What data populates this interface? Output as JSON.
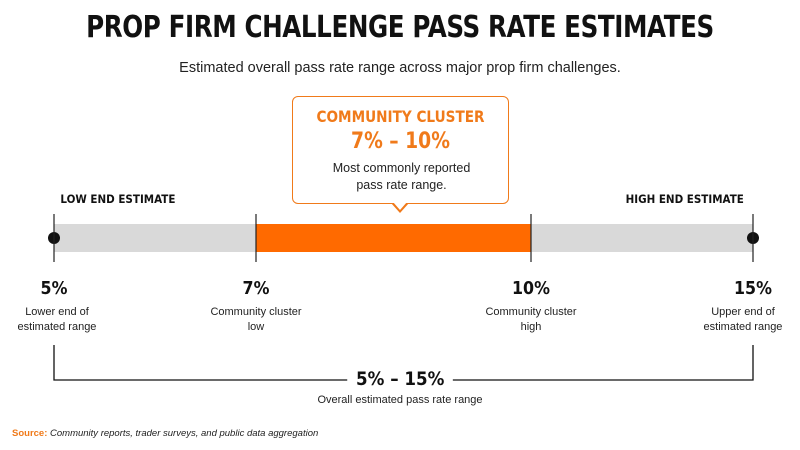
{
  "header": {
    "title": "PROP FIRM CHALLENGE PASS RATE ESTIMATES",
    "subtitle": "Estimated overall pass rate range across major prop firm challenges."
  },
  "callout": {
    "title": "COMMUNITY CLUSTER",
    "range": "7% – 10%",
    "description": "Most commonly reported pass rate range."
  },
  "ends": {
    "low_label": "LOW END ESTIMATE",
    "high_label": "HIGH END ESTIMATE"
  },
  "ticks": [
    {
      "value_label": "5%",
      "description": "Lower end of estimated range"
    },
    {
      "value_label": "7%",
      "description": "Community cluster low"
    },
    {
      "value_label": "10%",
      "description": "Community cluster high"
    },
    {
      "value_label": "15%",
      "description": "Upper end of estimated range"
    }
  ],
  "overall": {
    "range": "5% – 15%",
    "description": "Overall estimated pass rate range"
  },
  "source": {
    "label": "Source:",
    "text": "Community reports, trader surveys, and public data aggregation"
  },
  "chart_data": {
    "type": "bar",
    "title": "PROP FIRM CHALLENGE PASS RATE ESTIMATES",
    "subtitle": "Estimated overall pass rate range across major prop firm challenges.",
    "unit": "%",
    "overall_range": [
      5,
      15
    ],
    "highlight_range": [
      7,
      10
    ],
    "tick_values": [
      5,
      7,
      10,
      15
    ],
    "colors": {
      "track": "#d9d9d9",
      "highlight": "#ff6a00",
      "accent": "#f07a1a",
      "marker": "#111111"
    }
  }
}
